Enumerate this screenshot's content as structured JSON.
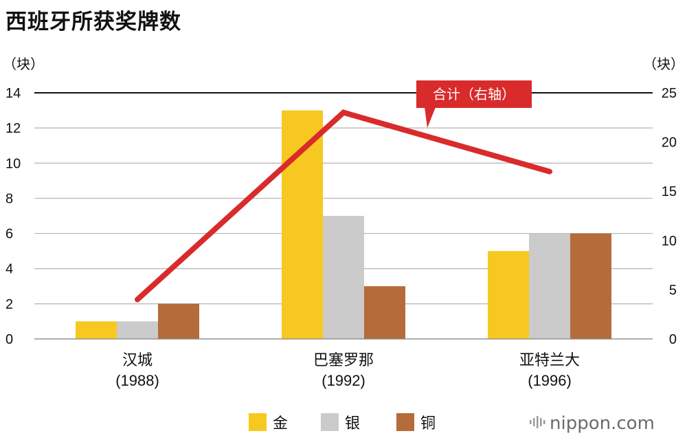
{
  "chart_data": {
    "type": "bar",
    "title": "西班牙所获奖牌数",
    "left_unit": "（块）",
    "right_unit": "（块）",
    "categories": [
      {
        "name": "汉城",
        "year": "(1988)"
      },
      {
        "name": "巴塞罗那",
        "year": "(1992)"
      },
      {
        "name": "亚特兰大",
        "year": "(1996)"
      }
    ],
    "series": [
      {
        "name": "金",
        "color": "#F7C820",
        "values": [
          1,
          13,
          5
        ]
      },
      {
        "name": "银",
        "color": "#CBCBCB",
        "values": [
          1,
          7,
          6
        ]
      },
      {
        "name": "铜",
        "color": "#B56B3A",
        "values": [
          2,
          3,
          6
        ]
      }
    ],
    "line_series": {
      "label": "合计（右轴）",
      "color": "#D92B2B",
      "values": [
        4,
        23,
        17
      ]
    },
    "ylim_left": [
      0,
      14
    ],
    "yticks_left": [
      0,
      2,
      4,
      6,
      8,
      10,
      12,
      14
    ],
    "ylim_right": [
      0,
      25
    ],
    "yticks_right": [
      0,
      5,
      10,
      15,
      20,
      25
    ],
    "grid": true,
    "legend_position": "bottom"
  },
  "brand": {
    "name": "nippon",
    "suffix": ".com",
    "icon": "sound-bars-icon"
  }
}
